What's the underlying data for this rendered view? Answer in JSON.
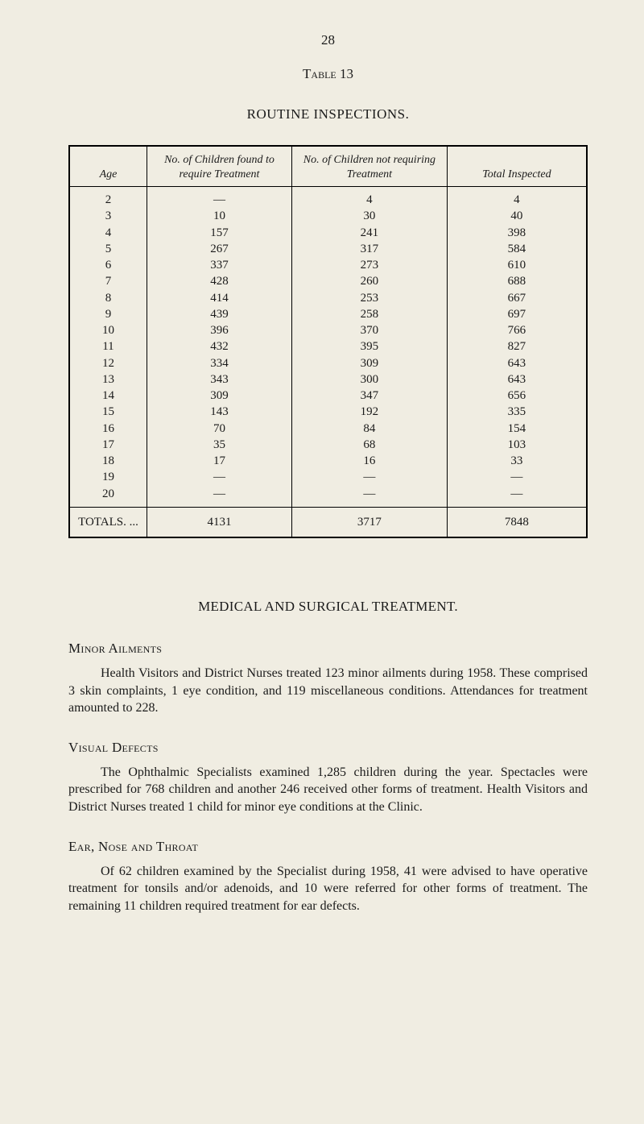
{
  "page_number": "28",
  "table_label": "Table 13",
  "section_title": "ROUTINE INSPECTIONS.",
  "table": {
    "headers": {
      "age": "Age",
      "col1": "No. of Children found to require Treatment",
      "col2": "No. of Children not requiring Treatment",
      "col3": "Total Inspected"
    },
    "rows": [
      {
        "age": "2",
        "c1": "—",
        "c2": "4",
        "c3": "4"
      },
      {
        "age": "3",
        "c1": "10",
        "c2": "30",
        "c3": "40"
      },
      {
        "age": "4",
        "c1": "157",
        "c2": "241",
        "c3": "398"
      },
      {
        "age": "5",
        "c1": "267",
        "c2": "317",
        "c3": "584"
      },
      {
        "age": "6",
        "c1": "337",
        "c2": "273",
        "c3": "610"
      },
      {
        "age": "7",
        "c1": "428",
        "c2": "260",
        "c3": "688"
      },
      {
        "age": "8",
        "c1": "414",
        "c2": "253",
        "c3": "667"
      },
      {
        "age": "9",
        "c1": "439",
        "c2": "258",
        "c3": "697"
      },
      {
        "age": "10",
        "c1": "396",
        "c2": "370",
        "c3": "766"
      },
      {
        "age": "11",
        "c1": "432",
        "c2": "395",
        "c3": "827"
      },
      {
        "age": "12",
        "c1": "334",
        "c2": "309",
        "c3": "643"
      },
      {
        "age": "13",
        "c1": "343",
        "c2": "300",
        "c3": "643"
      },
      {
        "age": "14",
        "c1": "309",
        "c2": "347",
        "c3": "656"
      },
      {
        "age": "15",
        "c1": "143",
        "c2": "192",
        "c3": "335"
      },
      {
        "age": "16",
        "c1": "70",
        "c2": "84",
        "c3": "154"
      },
      {
        "age": "17",
        "c1": "35",
        "c2": "68",
        "c3": "103"
      },
      {
        "age": "18",
        "c1": "17",
        "c2": "16",
        "c3": "33"
      },
      {
        "age": "19",
        "c1": "—",
        "c2": "—",
        "c3": "—"
      },
      {
        "age": "20",
        "c1": "—",
        "c2": "—",
        "c3": "—"
      }
    ],
    "totals": {
      "label": "TOTALS. ...",
      "c1": "4131",
      "c2": "3717",
      "c3": "7848"
    }
  },
  "heading_medical": "MEDICAL AND SURGICAL TREATMENT.",
  "sections": {
    "minor": {
      "title": "Minor Ailments",
      "body": "Health Visitors and District Nurses treated 123 minor ailments during 1958. These comprised 3 skin complaints, 1 eye condition, and 119 miscellaneous conditions. Attendances for treatment amounted to 228."
    },
    "visual": {
      "title": "Visual Defects",
      "body": "The Ophthalmic Specialists examined 1,285 children during the year. Spectacles were prescribed for 768 children and another 246 received other forms of treatment. Health Visitors and District Nurses treated 1 child for minor eye conditions at the Clinic."
    },
    "ent": {
      "title": "Ear, Nose and Throat",
      "body": "Of 62 children examined by the Specialist during 1958, 41 were advised to have operative treatment for tonsils and/or adenoids, and 10 were referred for other forms of treatment. The remaining 11 children required treatment for ear defects."
    }
  }
}
